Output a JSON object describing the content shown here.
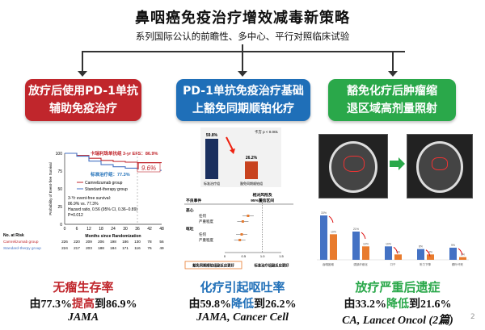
{
  "title": "鼻咽癌免疫治疗增效减毒新策略",
  "subtitle": "系列国际公认的前瞻性、多中心、平行对照临床试验",
  "colors": {
    "red": "#c0262c",
    "blue": "#1f6fb8",
    "green": "#2aa84a",
    "orange": "#e87b2e",
    "navy": "#1a2f5e",
    "barblue": "#4472c4"
  },
  "boxes": [
    {
      "line1": "放疗后使用PD-1单抗",
      "line2": "辅助免疫治疗"
    },
    {
      "line1": "PD-1单抗免疫治疗基础",
      "line2": "上豁免同期顺铂化疗"
    },
    {
      "line1": "豁免化疗后肿瘤缩",
      "line2": "退区域高剂量照射"
    }
  ],
  "km": {
    "ylabel": "Probability of Event-free Survival",
    "xlabel": "Months since Randomization",
    "yticks": [
      "0",
      "25",
      "50",
      "75",
      "100"
    ],
    "xticks": [
      "0",
      "6",
      "12",
      "18",
      "24",
      "30",
      "36",
      "42",
      "48"
    ],
    "annot_red": "卡瑞利珠单抗组 3-yr EFS：86.9%",
    "annot_blue": "标准治疗组：77.3%",
    "diff": "9.6%",
    "legend": [
      "Camrelizumab group",
      "Standard-therapy group"
    ],
    "stats": [
      "3-Yr event-free survival:",
      "86.9% vs. 77.3%",
      "Hazard ratio, 0.56 (95% CI, 0.36−0.89)",
      "P=0.012"
    ],
    "risk_title": "No. at Risk",
    "risk": [
      {
        "name": "Camrelizumab group",
        "values": [
          226,
          220,
          209,
          206,
          198,
          186,
          130,
          78,
          56
        ]
      },
      {
        "name": "Standard-therpy group",
        "values": [
          224,
          217,
          203,
          188,
          184,
          171,
          116,
          76,
          49
        ]
      }
    ]
  },
  "chart_data": [
    {
      "type": "line",
      "xlabel": "Months since Randomization",
      "ylabel": "Probability of Event-free Survival",
      "xlim": [
        0,
        48
      ],
      "ylim": [
        0,
        100
      ],
      "x": [
        0,
        6,
        12,
        18,
        24,
        30,
        36,
        42,
        48
      ],
      "series": [
        {
          "name": "Camrelizumab group",
          "values": [
            100,
            97,
            93,
            90,
            88.5,
            87.5,
            86.9,
            86.9,
            86.9
          ]
        },
        {
          "name": "Standard-therapy group",
          "values": [
            100,
            96,
            89,
            84,
            81,
            79,
            77.3,
            76,
            76
          ]
        }
      ]
    },
    {
      "type": "bar",
      "categories": [
        "标准治疗组",
        "豁免同期顺铂组"
      ],
      "values": [
        59.8,
        26.2
      ],
      "labels": [
        "59.8%",
        "26.2%"
      ],
      "pvalue": "卡方 p < 0.001"
    },
    {
      "type": "bar",
      "series": [
        {
          "values": [
            33,
            21,
            10,
            8,
            9
          ]
        },
        {
          "values": [
            19,
            10,
            4,
            4,
            2
          ]
        }
      ],
      "labels_a": [
        "33%",
        "21%",
        "10%",
        "8%",
        "9%"
      ],
      "labels_b": [
        "19%",
        "10%",
        "4%",
        "4%",
        "2%"
      ],
      "categories": [
        "吞咽困难",
        "颈部纤维化",
        "口干",
        "听力下降",
        "颞叶坏死"
      ]
    }
  ],
  "forest": {
    "col1": "不良事件",
    "col2a": "相对风险及",
    "col2b": "95%置信区间",
    "groups": [
      {
        "name": "恶心",
        "rows": [
          "任何",
          "严重程度"
        ],
        "est": [
          0.62,
          0.48
        ]
      },
      {
        "name": "呕吐",
        "rows": [
          "任何",
          "严重程度"
        ],
        "est": [
          0.45,
          0.4
        ]
      }
    ],
    "ticks": [
      "0",
      "0.5",
      "1.0",
      "1.5"
    ],
    "left_label": "豁免同期顺铂组副反应更好",
    "right_label": "标准治疗组副反应更好"
  },
  "panels": [
    {
      "head": "无瘤生存率",
      "pre": "由77.3%",
      "verb": "提高",
      "post": "到86.9%",
      "journal": "JAMA"
    },
    {
      "head": "化疗引起呕吐率",
      "pre": "由59.8%",
      "verb": "降低",
      "post": "到26.2%",
      "journal": "JAMA, Cancer Cell"
    },
    {
      "head": "放疗严重后遗症",
      "pre": "由33.2%",
      "verb": "降低",
      "post": "到21.6%",
      "journal": "CA, Lancet Oncol (2篇)"
    }
  ],
  "page_number": "2"
}
